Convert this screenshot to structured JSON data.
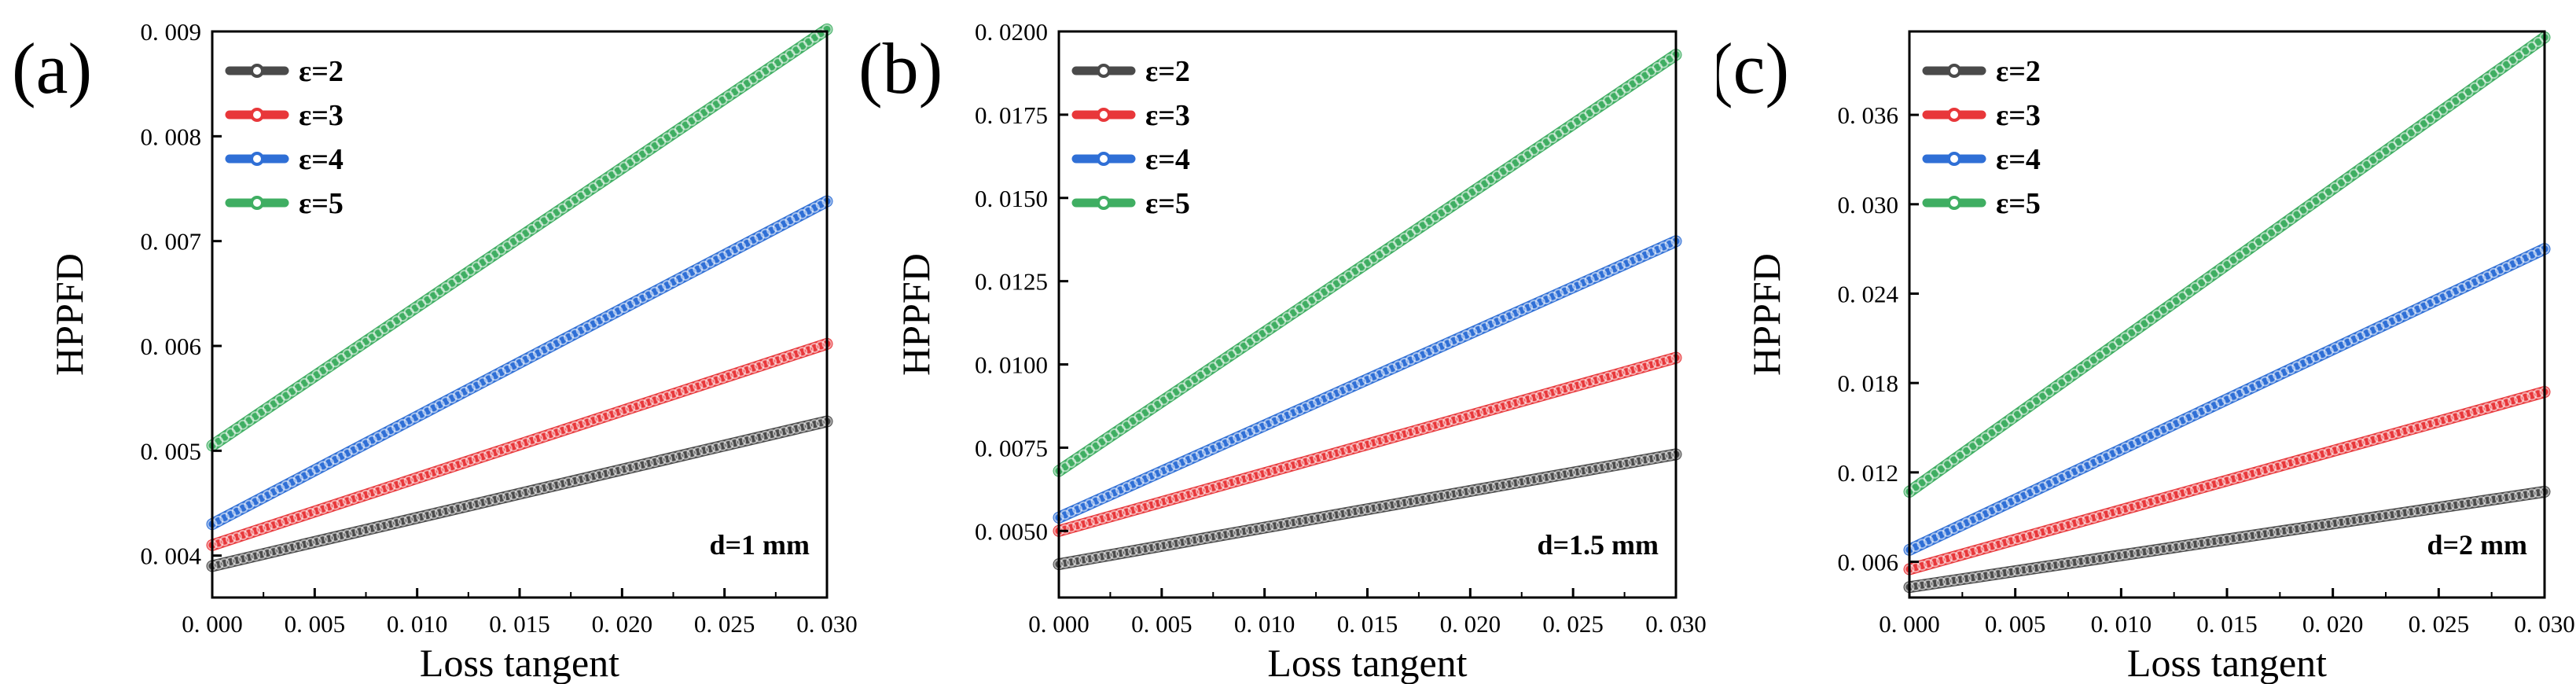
{
  "chart_data": [
    {
      "type": "line",
      "panel_label": "(a)",
      "annotation": "d=1 mm",
      "xlabel": "Loss tangent",
      "ylabel": "HPPFD",
      "xlim": [
        0,
        0.03
      ],
      "ylim": [
        0.0036,
        0.009
      ],
      "xticks": [
        0,
        0.005,
        0.01,
        0.015,
        0.02,
        0.025,
        0.03
      ],
      "xtick_labels": [
        "0. 000",
        "0. 005",
        "0. 010",
        "0. 015",
        "0. 020",
        "0. 025",
        "0. 030"
      ],
      "yticks": [
        0.004,
        0.005,
        0.006,
        0.007,
        0.008,
        0.009
      ],
      "ytick_labels": [
        "0. 004",
        "0. 005",
        "0. 006",
        "0. 007",
        "0. 008",
        "0. 009"
      ],
      "series": [
        {
          "name": "ε=2",
          "color": "#4a4a4a",
          "start": [
            0,
            0.0039
          ],
          "end": [
            0.03,
            0.00528
          ]
        },
        {
          "name": "ε=3",
          "color": "#e8373a",
          "start": [
            0,
            0.0041
          ],
          "end": [
            0.03,
            0.00602
          ]
        },
        {
          "name": "ε=4",
          "color": "#2f6fd6",
          "start": [
            0,
            0.0043
          ],
          "end": [
            0.03,
            0.00738
          ]
        },
        {
          "name": "ε=5",
          "color": "#3fae62",
          "start": [
            0,
            0.00505
          ],
          "end": [
            0.03,
            0.00902
          ]
        }
      ]
    },
    {
      "type": "line",
      "panel_label": "(b)",
      "annotation": "d=1.5 mm",
      "xlabel": "Loss tangent",
      "ylabel": "HPPFD",
      "xlim": [
        0,
        0.03
      ],
      "ylim": [
        0.003,
        0.02
      ],
      "xticks": [
        0,
        0.005,
        0.01,
        0.015,
        0.02,
        0.025,
        0.03
      ],
      "xtick_labels": [
        "0. 000",
        "0. 005",
        "0. 010",
        "0. 015",
        "0. 020",
        "0. 025",
        "0. 030"
      ],
      "yticks": [
        0.005,
        0.0075,
        0.01,
        0.0125,
        0.015,
        0.0175,
        0.02
      ],
      "ytick_labels": [
        "0. 0050",
        "0. 0075",
        "0. 0100",
        "0. 0125",
        "0. 0150",
        "0. 0175",
        "0. 0200"
      ],
      "series": [
        {
          "name": "ε=2",
          "color": "#4a4a4a",
          "start": [
            0,
            0.004
          ],
          "end": [
            0.03,
            0.0073
          ]
        },
        {
          "name": "ε=3",
          "color": "#e8373a",
          "start": [
            0,
            0.005
          ],
          "end": [
            0.03,
            0.0102
          ]
        },
        {
          "name": "ε=4",
          "color": "#2f6fd6",
          "start": [
            0,
            0.0054
          ],
          "end": [
            0.03,
            0.0137
          ]
        },
        {
          "name": "ε=5",
          "color": "#3fae62",
          "start": [
            0,
            0.0068
          ],
          "end": [
            0.03,
            0.0193
          ]
        }
      ]
    },
    {
      "type": "line",
      "panel_label": "(c)",
      "annotation": "d=2 mm",
      "xlabel": "Loss tangent",
      "ylabel": "HPPFD",
      "xlim": [
        0,
        0.03
      ],
      "ylim": [
        0.0036,
        0.0416
      ],
      "xticks": [
        0,
        0.005,
        0.01,
        0.015,
        0.02,
        0.025,
        0.03
      ],
      "xtick_labels": [
        "0. 000",
        "0. 005",
        "0. 010",
        "0. 015",
        "0. 020",
        "0. 025",
        "0. 030"
      ],
      "yticks": [
        0.006,
        0.012,
        0.018,
        0.024,
        0.03,
        0.036
      ],
      "ytick_labels": [
        "0. 006",
        "0. 012",
        "0. 018",
        "0. 024",
        "0. 030",
        "0. 036"
      ],
      "series": [
        {
          "name": "ε=2",
          "color": "#4a4a4a",
          "start": [
            0,
            0.0043
          ],
          "end": [
            0.03,
            0.0107
          ]
        },
        {
          "name": "ε=3",
          "color": "#e8373a",
          "start": [
            0,
            0.0055
          ],
          "end": [
            0.03,
            0.0174
          ]
        },
        {
          "name": "ε=4",
          "color": "#2f6fd6",
          "start": [
            0,
            0.0068
          ],
          "end": [
            0.03,
            0.027
          ]
        },
        {
          "name": "ε=5",
          "color": "#3fae62",
          "start": [
            0,
            0.0107
          ],
          "end": [
            0.03,
            0.0412
          ]
        }
      ]
    }
  ]
}
